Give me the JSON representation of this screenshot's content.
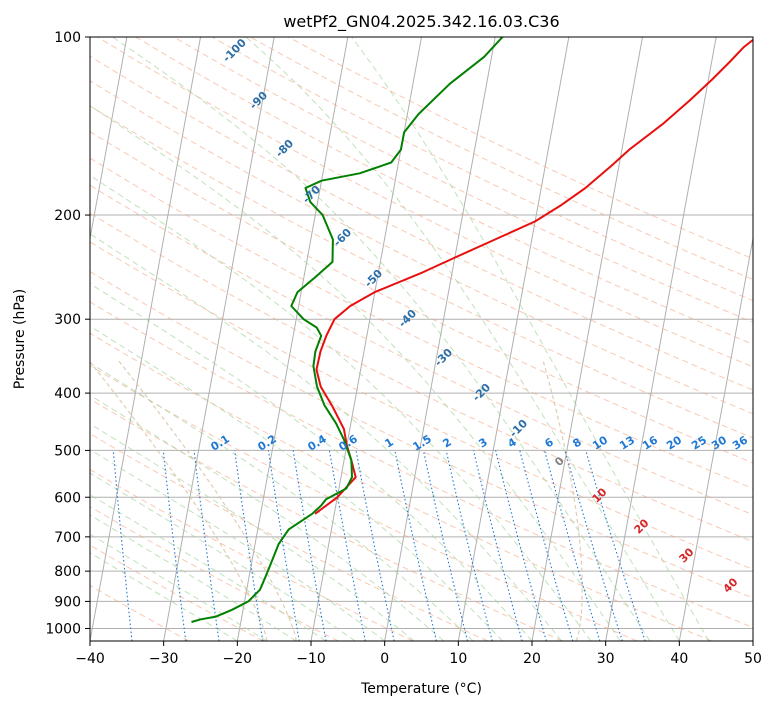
{
  "chart_data": {
    "type": "line",
    "title": "wetPf2_GN04.2025.342.16.03.C36",
    "xlabel": "Temperature (°C)",
    "ylabel": "Pressure (hPa)",
    "xlim": [
      -40,
      50
    ],
    "ylim": [
      1050,
      100
    ],
    "y_scale": "log",
    "x_ticks": [
      "−40",
      "−30",
      "−20",
      "−10",
      "0",
      "10",
      "20",
      "30",
      "40",
      "50"
    ],
    "y_ticks": [
      {
        "value": 100,
        "label": "100"
      },
      {
        "value": 200,
        "label": "200"
      },
      {
        "value": 300,
        "label": "300"
      },
      {
        "value": 400,
        "label": "400"
      },
      {
        "value": 500,
        "label": "500"
      },
      {
        "value": 600,
        "label": "600"
      },
      {
        "value": 700,
        "label": "700"
      },
      {
        "value": 800,
        "label": "800"
      },
      {
        "value": 900,
        "label": "900"
      },
      {
        "value": 1000,
        "label": "1000"
      }
    ],
    "grid": true,
    "series": [
      {
        "color": "#e8100f",
        "points": [
          [
            -12.6,
            640
          ],
          [
            -10,
            600
          ],
          [
            -8,
            555
          ],
          [
            -9,
            520
          ],
          [
            -10,
            490
          ],
          [
            -10.8,
            460
          ],
          [
            -13,
            420
          ],
          [
            -15,
            390
          ],
          [
            -16,
            365
          ],
          [
            -15.9,
            340
          ],
          [
            -15.5,
            320
          ],
          [
            -14.8,
            300
          ],
          [
            -13,
            285
          ],
          [
            -10,
            270
          ],
          [
            -4,
            250
          ],
          [
            0,
            236
          ],
          [
            5,
            220
          ],
          [
            10,
            205
          ],
          [
            13,
            193
          ],
          [
            16,
            180
          ],
          [
            19,
            165
          ],
          [
            21,
            155
          ],
          [
            25,
            140
          ],
          [
            28,
            128
          ],
          [
            30.5,
            118
          ],
          [
            32.5,
            110
          ],
          [
            34,
            104
          ],
          [
            35.5,
            100
          ]
        ]
      },
      {
        "color": "#008000",
        "points": [
          [
            -26.7,
            975
          ],
          [
            -25.5,
            965
          ],
          [
            -23.5,
            955
          ],
          [
            -21.5,
            930
          ],
          [
            -19.5,
            900
          ],
          [
            -18.2,
            860
          ],
          [
            -17.8,
            820
          ],
          [
            -17.3,
            770
          ],
          [
            -16.8,
            720
          ],
          [
            -15.8,
            680
          ],
          [
            -13,
            640
          ],
          [
            -12,
            620
          ],
          [
            -11.5,
            605
          ],
          [
            -9,
            580
          ],
          [
            -8.5,
            555
          ],
          [
            -9,
            520
          ],
          [
            -10.5,
            480
          ],
          [
            -12,
            450
          ],
          [
            -14,
            420
          ],
          [
            -15.5,
            390
          ],
          [
            -16.5,
            360
          ],
          [
            -16.6,
            340
          ],
          [
            -16.2,
            320
          ],
          [
            -17,
            310
          ],
          [
            -19,
            300
          ],
          [
            -21,
            285
          ],
          [
            -20.5,
            270
          ],
          [
            -18.5,
            255
          ],
          [
            -16.5,
            240
          ],
          [
            -17,
            220
          ],
          [
            -19,
            200
          ],
          [
            -21,
            190
          ],
          [
            -22,
            180
          ],
          [
            -20,
            175
          ],
          [
            -15,
            170
          ],
          [
            -11,
            163
          ],
          [
            -10,
            155
          ],
          [
            -10,
            145
          ],
          [
            -8.5,
            135
          ],
          [
            -5,
            120
          ],
          [
            -1,
            108
          ],
          [
            1,
            100
          ]
        ]
      }
    ],
    "dry_adiabat_labels": [
      "-100",
      "-90",
      "-80",
      "-70",
      "-60",
      "-50",
      "-40",
      "-30",
      "-20",
      "-10",
      "0",
      "10",
      "20",
      "30",
      "40"
    ],
    "mixing_ratio_labels": [
      "0.1",
      "0.2",
      "0.4",
      "0.6",
      "1",
      "1.5",
      "2",
      "3",
      "4",
      "6",
      "8",
      "10",
      "13",
      "16",
      "20",
      "25",
      "30",
      "36"
    ],
    "colors": {
      "isotherm": "#b0b0b0",
      "isobar": "#b0b0b0",
      "dry_adiabat": "#f4a582",
      "moist_adiabat": "#a6d4a0",
      "mixing_ratio": "#1e78d4",
      "theta_label": "#2c6fa8",
      "theta_label_warm": "#d62728",
      "wetbulb_label": "#808080",
      "ccl_curve": "#d8c0a0"
    }
  }
}
